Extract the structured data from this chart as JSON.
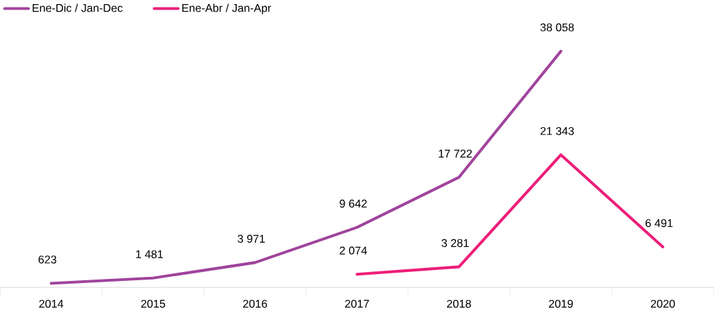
{
  "chart_data": {
    "type": "line",
    "categories": [
      "2014",
      "2015",
      "2016",
      "2017",
      "2018",
      "2019",
      "2020"
    ],
    "series": [
      {
        "name": "Ene-Dic / Jan-Dec",
        "color": "#a0449c",
        "values": [
          623,
          1481,
          3971,
          9642,
          17722,
          38058,
          null
        ],
        "value_labels": [
          "623",
          "1 481",
          "3 971",
          "9 642",
          "17 722",
          "38 058",
          null
        ]
      },
      {
        "name": "Ene-Abr / Jan-Apr",
        "color": "#ec1e79",
        "values": [
          null,
          null,
          null,
          2074,
          3281,
          21343,
          6491
        ],
        "value_labels": [
          null,
          null,
          null,
          "2 074",
          "3 281",
          "21 343",
          "6 491"
        ]
      }
    ],
    "legend": "top left"
  }
}
